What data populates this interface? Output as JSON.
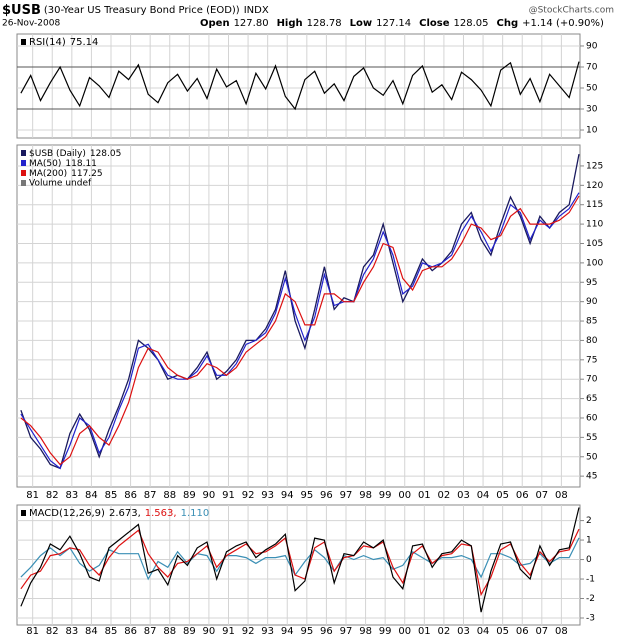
{
  "header": {
    "symbol": "$USB",
    "description": "(30-Year US Treasury Bond Price (EOD))",
    "exchange": "INDX",
    "date": "26-Nov-2008",
    "quote": [
      {
        "label": "Open",
        "value": "127.80"
      },
      {
        "label": "High",
        "value": "128.78"
      },
      {
        "label": "Low",
        "value": "127.14"
      },
      {
        "label": "Close",
        "value": "128.05"
      },
      {
        "label": "Chg",
        "value": "+1.14 (+0.90%)"
      }
    ],
    "watermark": "@StockCharts.com"
  },
  "chart_data": [
    {
      "type": "line",
      "panel": "rsi",
      "legend_title": "RSI(14)",
      "x": [
        1980.4,
        1980.9,
        1981.4,
        1981.9,
        1982.4,
        1982.9,
        1983.4,
        1983.9,
        1984.4,
        1984.9,
        1985.4,
        1985.9,
        1986.4,
        1986.9,
        1987.4,
        1987.9,
        1988.4,
        1988.9,
        1989.4,
        1989.9,
        1990.4,
        1990.9,
        1991.4,
        1991.9,
        1992.4,
        1992.9,
        1993.4,
        1993.9,
        1994.4,
        1994.9,
        1995.4,
        1995.9,
        1996.4,
        1996.9,
        1997.4,
        1997.9,
        1998.4,
        1998.9,
        1999.4,
        1999.9,
        2000.4,
        2000.9,
        2001.4,
        2001.9,
        2002.4,
        2002.9,
        2003.4,
        2003.9,
        2004.4,
        2004.9,
        2005.4,
        2005.9,
        2006.4,
        2006.9,
        2007.4,
        2007.9,
        2008.4,
        2008.9
      ],
      "series": [
        {
          "color": "#000000",
          "values": [
            45,
            62,
            38,
            55,
            70,
            48,
            33,
            60,
            52,
            41,
            66,
            58,
            72,
            44,
            36,
            55,
            63,
            47,
            59,
            40,
            68,
            51,
            57,
            35,
            64,
            49,
            71,
            42,
            30,
            58,
            66,
            45,
            54,
            38,
            61,
            69,
            50,
            43,
            57,
            35,
            62,
            71,
            46,
            53,
            39,
            65,
            58,
            48,
            33,
            67,
            74,
            44,
            59,
            37,
            63,
            52,
            41,
            75.14
          ]
        }
      ],
      "xlim": [
        1980.2,
        2008.95
      ],
      "xticks": [
        1981,
        1982,
        1983,
        1984,
        1985,
        1986,
        1987,
        1988,
        1989,
        1990,
        1991,
        1992,
        1993,
        1994,
        1995,
        1996,
        1997,
        1998,
        1999,
        2000,
        2001,
        2002,
        2003,
        2004,
        2005,
        2006,
        2007,
        2008
      ],
      "ylim": [
        2.4,
        101.4
      ],
      "yticks": [
        10,
        30,
        50,
        70,
        90
      ],
      "bands": [
        30,
        70
      ],
      "grid": true
    },
    {
      "type": "line",
      "panel": "price",
      "volume_label": "Volume undef",
      "x": [
        1980.4,
        1980.9,
        1981.4,
        1981.9,
        1982.4,
        1982.9,
        1983.4,
        1983.9,
        1984.4,
        1984.9,
        1985.4,
        1985.9,
        1986.4,
        1986.9,
        1987.4,
        1987.9,
        1988.4,
        1988.9,
        1989.4,
        1989.9,
        1990.4,
        1990.9,
        1991.4,
        1991.9,
        1992.4,
        1992.9,
        1993.4,
        1993.9,
        1994.4,
        1994.9,
        1995.4,
        1995.9,
        1996.4,
        1996.9,
        1997.4,
        1997.9,
        1998.4,
        1998.9,
        1999.4,
        1999.9,
        2000.4,
        2000.9,
        2001.4,
        2001.9,
        2002.4,
        2002.9,
        2003.4,
        2003.9,
        2004.4,
        2004.9,
        2005.4,
        2005.9,
        2006.4,
        2006.9,
        2007.4,
        2007.9,
        2008.4,
        2008.9
      ],
      "series": [
        {
          "name": "$USB (Daily)",
          "color": "#1a1a5e",
          "values": [
            62,
            55,
            52,
            48,
            47,
            56,
            61,
            57,
            50,
            57,
            63,
            70,
            80,
            78,
            75,
            70,
            71,
            70,
            73,
            77,
            70,
            72,
            75,
            80,
            80,
            83,
            88,
            98,
            85,
            78,
            88,
            99,
            88,
            91,
            90,
            99,
            102,
            110,
            100,
            90,
            95,
            101,
            98,
            100,
            103,
            110,
            113,
            106,
            102,
            110,
            117,
            112,
            105,
            112,
            109,
            113,
            115,
            128.05
          ]
        },
        {
          "name": "MA(50)",
          "color": "#2222cc",
          "values": [
            61,
            57,
            53,
            49,
            47,
            53,
            60,
            58,
            51,
            55,
            62,
            68,
            78,
            79,
            75,
            71,
            70,
            70,
            72,
            76,
            71,
            71,
            74,
            79,
            80,
            82,
            87,
            96,
            87,
            80,
            86,
            97,
            89,
            90,
            90,
            97,
            101,
            108,
            102,
            92,
            94,
            100,
            99,
            100,
            102,
            108,
            112,
            108,
            103,
            108,
            115,
            113,
            106,
            111,
            109,
            112,
            114,
            118.11
          ]
        },
        {
          "name": "MA(200)",
          "color": "#dd1111",
          "values": [
            60,
            58,
            55,
            51,
            48,
            50,
            56,
            58,
            55,
            53,
            58,
            64,
            73,
            78,
            77,
            73,
            71,
            70,
            71,
            74,
            73,
            71,
            73,
            77,
            79,
            81,
            85,
            92,
            90,
            84,
            84,
            92,
            92,
            90,
            90,
            95,
            99,
            105,
            104,
            96,
            93,
            98,
            99,
            99,
            101,
            105,
            110,
            109,
            106,
            107,
            112,
            114,
            110,
            110,
            110,
            111,
            113,
            117.25
          ]
        }
      ],
      "xlim": [
        1980.2,
        2008.95
      ],
      "xticks": [
        {
          "value": 1981,
          "label": "81"
        },
        {
          "value": 1982,
          "label": "82"
        },
        {
          "value": 1983,
          "label": "83"
        },
        {
          "value": 1984,
          "label": "84"
        },
        {
          "value": 1985,
          "label": "85"
        },
        {
          "value": 1986,
          "label": "86"
        },
        {
          "value": 1987,
          "label": "87"
        },
        {
          "value": 1988,
          "label": "88"
        },
        {
          "value": 1989,
          "label": "89"
        },
        {
          "value": 1990,
          "label": "90"
        },
        {
          "value": 1991,
          "label": "91"
        },
        {
          "value": 1992,
          "label": "92"
        },
        {
          "value": 1993,
          "label": "93"
        },
        {
          "value": 1994,
          "label": "94"
        },
        {
          "value": 1995,
          "label": "95"
        },
        {
          "value": 1996,
          "label": "96"
        },
        {
          "value": 1997,
          "label": "97"
        },
        {
          "value": 1998,
          "label": "98"
        },
        {
          "value": 1999,
          "label": "99"
        },
        {
          "value": 2000,
          "label": "00"
        },
        {
          "value": 2001,
          "label": "01"
        },
        {
          "value": 2002,
          "label": "02"
        },
        {
          "value": 2003,
          "label": "03"
        },
        {
          "value": 2004,
          "label": "04"
        },
        {
          "value": 2005,
          "label": "05"
        },
        {
          "value": 2006,
          "label": "06"
        },
        {
          "value": 2007,
          "label": "07"
        },
        {
          "value": 2008,
          "label": "08"
        }
      ],
      "ylim": [
        42.2,
        130.4
      ],
      "yticks": [
        45,
        50,
        55,
        60,
        65,
        70,
        75,
        80,
        85,
        90,
        95,
        100,
        105,
        110,
        115,
        120,
        125
      ],
      "grid": true
    },
    {
      "type": "line",
      "panel": "macd",
      "legend_title": "MACD(12,26,9)",
      "x": [
        1980.4,
        1980.9,
        1981.4,
        1981.9,
        1982.4,
        1982.9,
        1983.4,
        1983.9,
        1984.4,
        1984.9,
        1985.4,
        1985.9,
        1986.4,
        1986.9,
        1987.4,
        1987.9,
        1988.4,
        1988.9,
        1989.4,
        1989.9,
        1990.4,
        1990.9,
        1991.4,
        1991.9,
        1992.4,
        1992.9,
        1993.4,
        1993.9,
        1994.4,
        1994.9,
        1995.4,
        1995.9,
        1996.4,
        1996.9,
        1997.4,
        1997.9,
        1998.4,
        1998.9,
        1999.4,
        1999.9,
        2000.4,
        2000.9,
        2001.4,
        2001.9,
        2002.4,
        2002.9,
        2003.4,
        2003.9,
        2004.4,
        2004.9,
        2005.4,
        2005.9,
        2006.4,
        2006.9,
        2007.4,
        2007.9,
        2008.4,
        2008.9
      ],
      "series": [
        {
          "color": "#3a8fb5",
          "last_label": "1.110",
          "values": [
            -0.9,
            -0.4,
            0.2,
            0.6,
            0.2,
            0.6,
            -0.2,
            -0.6,
            -0.3,
            0.5,
            0.3,
            0.3,
            0.3,
            -1.0,
            -0.1,
            -0.4,
            0.4,
            -0.2,
            0.3,
            0.2,
            -0.6,
            0.2,
            0.2,
            0.1,
            -0.2,
            0.1,
            0.1,
            0.2,
            -0.8,
            -0.1,
            0.5,
            0.1,
            -0.6,
            0.2,
            0,
            0.2,
            0,
            0.1,
            -0.5,
            -0.3,
            0.4,
            0.1,
            -0.2,
            0.1,
            0.1,
            0.2,
            0,
            -0.9,
            0.3,
            0.3,
            0.1,
            -0.3,
            -0.2,
            0.3,
            -0.2,
            0.1,
            0.1,
            1.11
          ]
        },
        {
          "color": "#dd1111",
          "last_label": "1.563,",
          "values": [
            -1.5,
            -0.8,
            -0.6,
            0.2,
            0.3,
            0.6,
            0.5,
            -0.3,
            -0.8,
            0.1,
            0.7,
            1.1,
            1.5,
            0.3,
            -0.4,
            -0.9,
            -0.2,
            -0.1,
            0.3,
            0.7,
            -0.4,
            0.2,
            0.5,
            0.8,
            0.3,
            0.4,
            0.7,
            1.1,
            -0.8,
            -1.0,
            0.6,
            0.9,
            -0.6,
            0.1,
            0.2,
            0.7,
            0.6,
            0.9,
            -0.4,
            -1.2,
            0.3,
            0.7,
            -0.2,
            0.2,
            0.3,
            0.8,
            0.7,
            -1.8,
            -0.9,
            0.5,
            0.8,
            -0.2,
            -0.8,
            0.4,
            -0.1,
            0.4,
            0.5,
            1.563
          ]
        },
        {
          "color": "#000000",
          "last_label": "2.673,",
          "values": [
            -2.4,
            -1.2,
            -0.4,
            0.8,
            0.5,
            1.2,
            0.3,
            -0.9,
            -1.1,
            0.6,
            1.0,
            1.4,
            1.8,
            -0.7,
            -0.5,
            -1.3,
            0.2,
            -0.3,
            0.6,
            0.9,
            -1.0,
            0.4,
            0.7,
            0.9,
            0.1,
            0.5,
            0.8,
            1.3,
            -1.6,
            -1.1,
            1.1,
            1.0,
            -1.2,
            0.3,
            0.2,
            0.9,
            0.6,
            1.0,
            -0.9,
            -1.5,
            0.7,
            0.8,
            -0.4,
            0.3,
            0.4,
            1.0,
            0.7,
            -2.7,
            -0.6,
            0.8,
            0.9,
            -0.5,
            -1.0,
            0.7,
            -0.3,
            0.5,
            0.6,
            2.673
          ]
        }
      ],
      "xlim": [
        1980.2,
        2008.95
      ],
      "xticks": [
        {
          "value": 1981,
          "label": "81"
        },
        {
          "value": 1982,
          "label": "82"
        },
        {
          "value": 1983,
          "label": "83"
        },
        {
          "value": 1984,
          "label": "84"
        },
        {
          "value": 1985,
          "label": "85"
        },
        {
          "value": 1986,
          "label": "86"
        },
        {
          "value": 1987,
          "label": "87"
        },
        {
          "value": 1988,
          "label": "88"
        },
        {
          "value": 1989,
          "label": "89"
        },
        {
          "value": 1990,
          "label": "90"
        },
        {
          "value": 1991,
          "label": "91"
        },
        {
          "value": 1992,
          "label": "92"
        },
        {
          "value": 1993,
          "label": "93"
        },
        {
          "value": 1994,
          "label": "94"
        },
        {
          "value": 1995,
          "label": "95"
        },
        {
          "value": 1996,
          "label": "96"
        },
        {
          "value": 1997,
          "label": "97"
        },
        {
          "value": 1998,
          "label": "98"
        },
        {
          "value": 1999,
          "label": "99"
        },
        {
          "value": 2000,
          "label": "00"
        },
        {
          "value": 2001,
          "label": "01"
        },
        {
          "value": 2002,
          "label": "02"
        },
        {
          "value": 2003,
          "label": "03"
        },
        {
          "value": 2004,
          "label": "04"
        },
        {
          "value": 2005,
          "label": "05"
        },
        {
          "value": 2006,
          "label": "06"
        },
        {
          "value": 2007,
          "label": "07"
        },
        {
          "value": 2008,
          "label": "08"
        }
      ],
      "ylim": [
        -3.36,
        2.8
      ],
      "yticks": [
        -3,
        -2,
        -1,
        0,
        1,
        2
      ],
      "grid": true
    }
  ]
}
